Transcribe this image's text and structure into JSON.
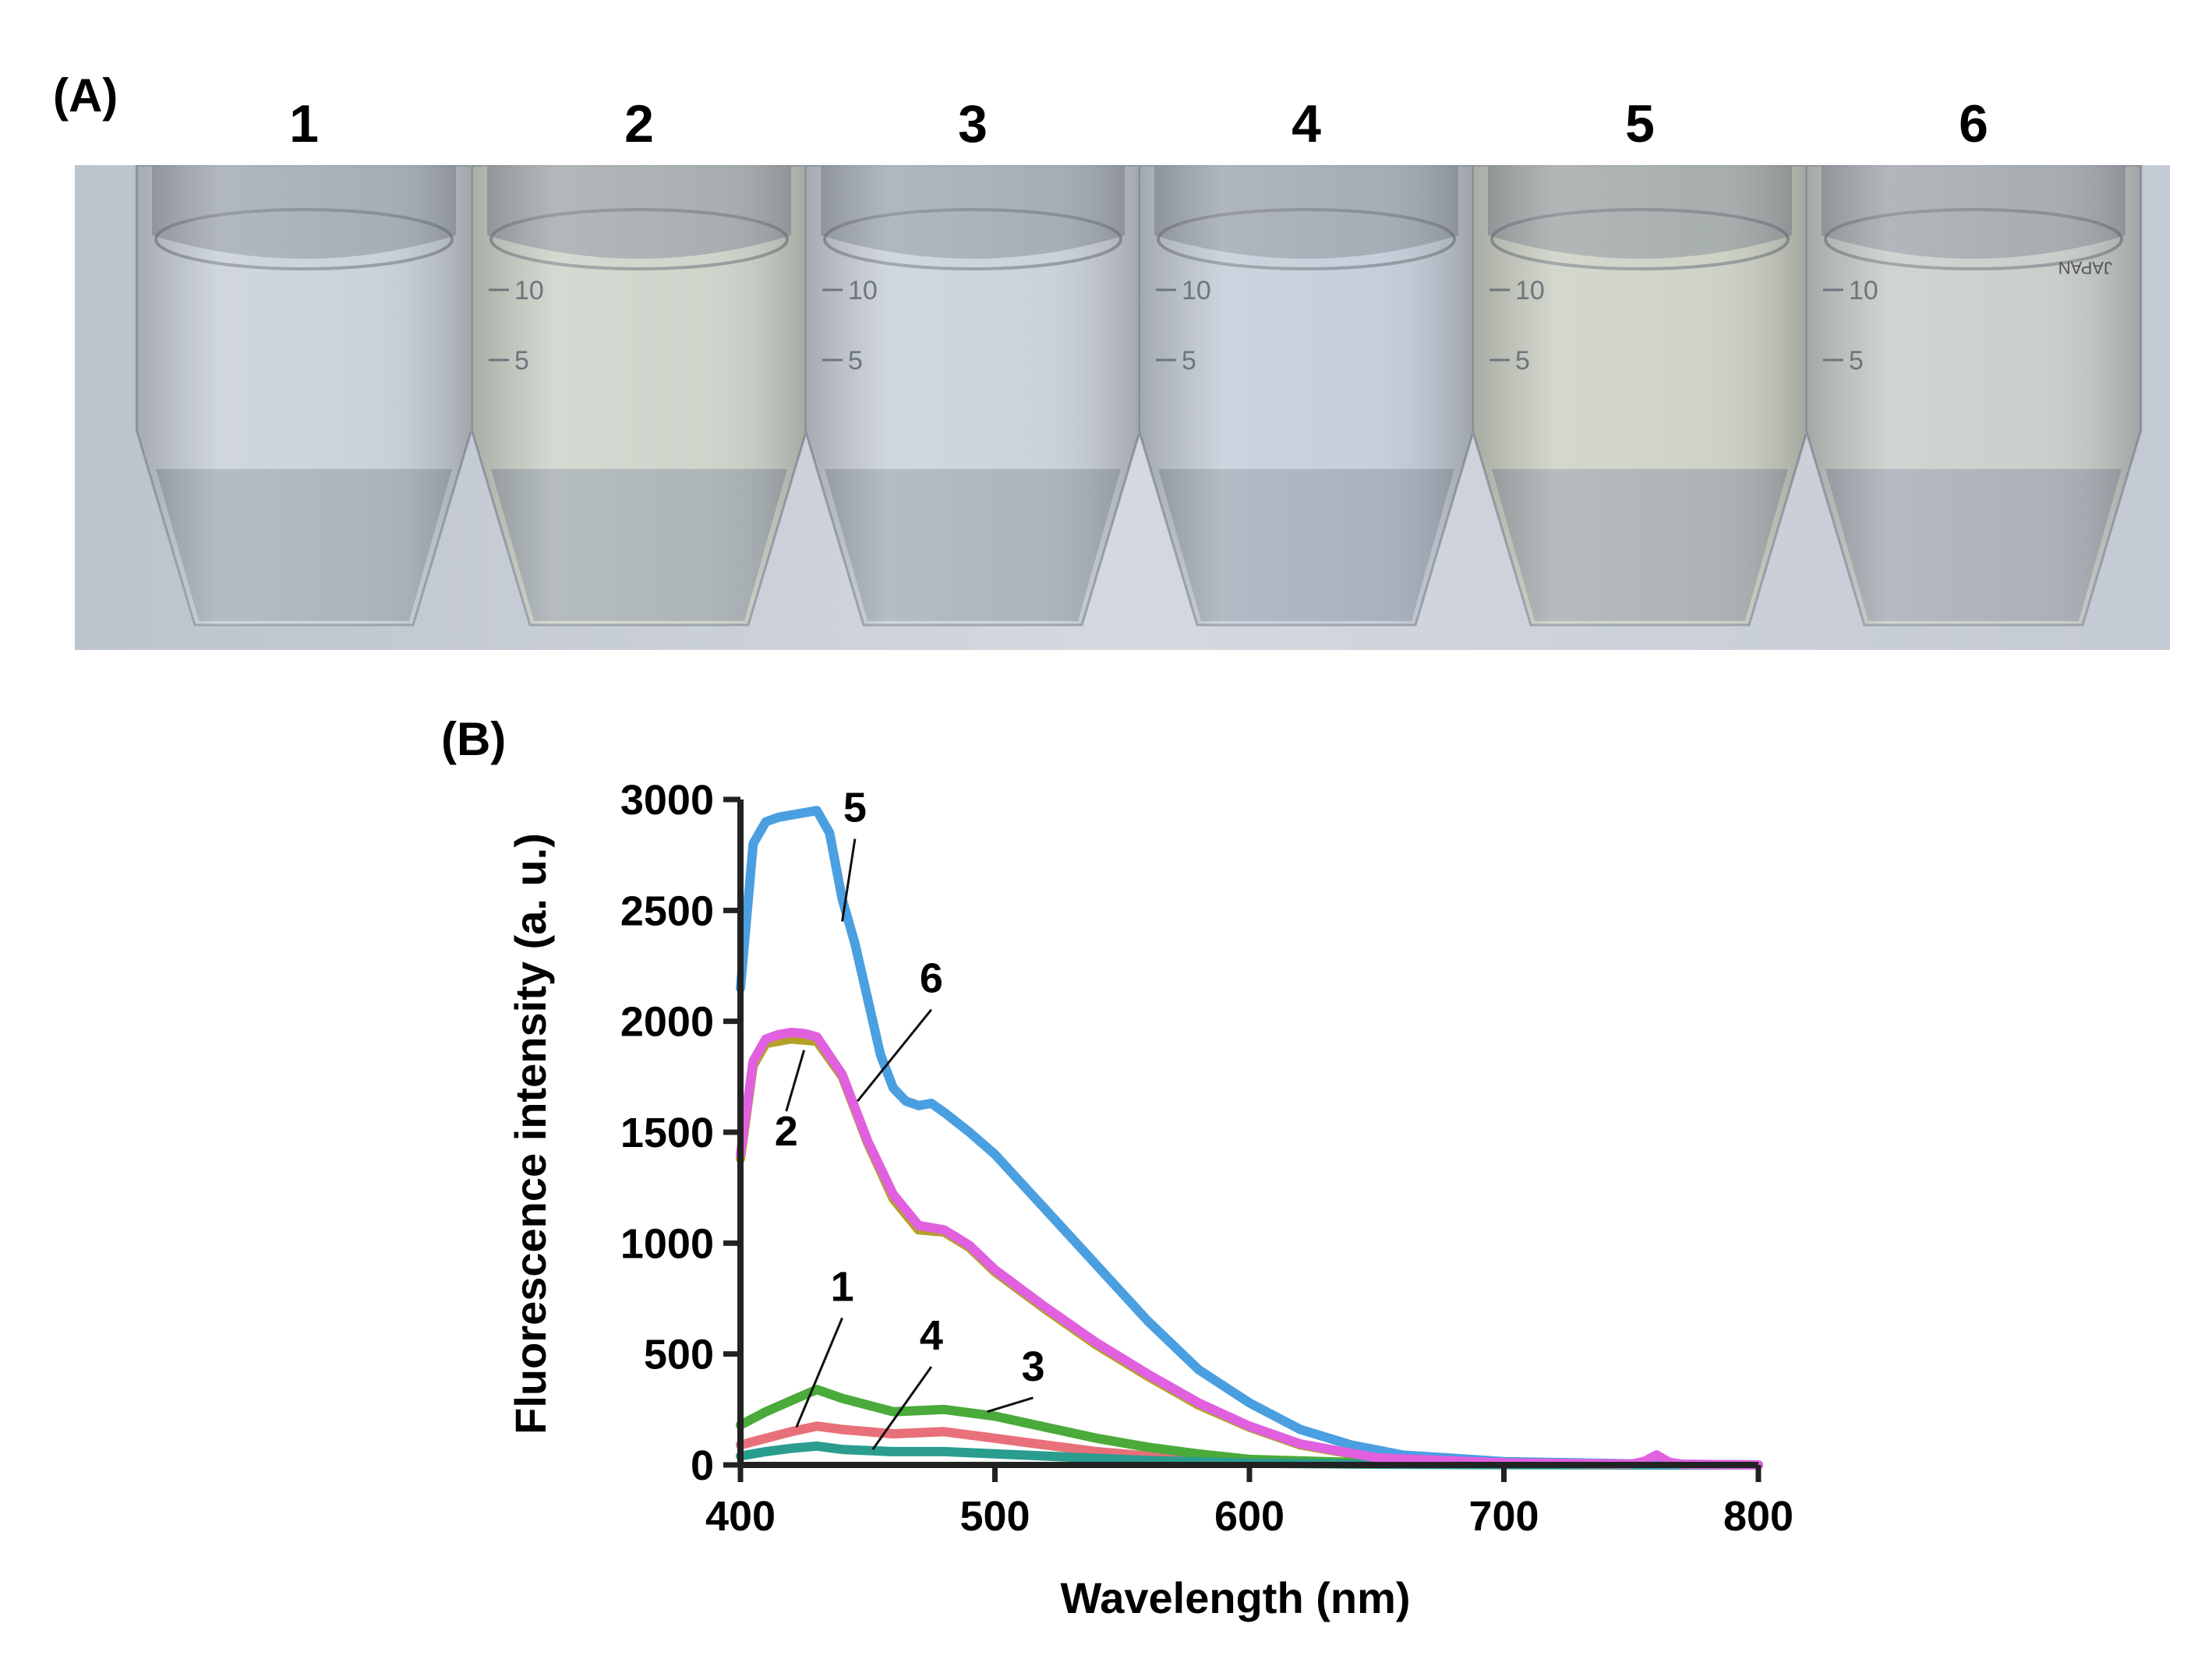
{
  "panel_a": {
    "label": "(A)",
    "tube_numbers": [
      "1",
      "2",
      "3",
      "4",
      "5",
      "6"
    ],
    "tube_tints": [
      "#c8d0d6",
      "#cdd3c9",
      "#c9d0d8",
      "#c5ccd8",
      "#ccd0c4",
      "#c8cdca"
    ],
    "graduation_marks": [
      [
        "",
        ""
      ],
      [
        "10",
        "5"
      ],
      [
        "10",
        "5"
      ],
      [
        "10",
        "5"
      ],
      [
        "10",
        "5"
      ],
      [
        "10",
        "5"
      ]
    ],
    "cap_text": "JAPAN"
  },
  "panel_b": {
    "label": "(B)"
  },
  "chart_data": {
    "type": "line",
    "title": "",
    "xlabel": "Wavelength (nm)",
    "ylabel": "Fluorescence intensity (a. u.)",
    "xlim": [
      400,
      800
    ],
    "ylim": [
      0,
      3000
    ],
    "xticks": [
      400,
      500,
      600,
      700,
      800
    ],
    "yticks": [
      0,
      500,
      1000,
      1500,
      2000,
      2500,
      3000
    ],
    "grid": false,
    "legend": "none",
    "series": [
      {
        "name": "1",
        "color": "#e8707a",
        "points": [
          [
            400,
            90
          ],
          [
            410,
            120
          ],
          [
            420,
            150
          ],
          [
            430,
            175
          ],
          [
            440,
            160
          ],
          [
            460,
            140
          ],
          [
            480,
            150
          ],
          [
            500,
            120
          ],
          [
            520,
            90
          ],
          [
            540,
            60
          ],
          [
            560,
            40
          ],
          [
            600,
            15
          ],
          [
            650,
            5
          ],
          [
            700,
            2
          ],
          [
            800,
            0
          ]
        ]
      },
      {
        "name": "2",
        "color": "#b5a02a",
        "points": [
          [
            400,
            1380
          ],
          [
            405,
            1800
          ],
          [
            410,
            1900
          ],
          [
            420,
            1920
          ],
          [
            430,
            1910
          ],
          [
            440,
            1750
          ],
          [
            450,
            1450
          ],
          [
            460,
            1200
          ],
          [
            470,
            1060
          ],
          [
            480,
            1050
          ],
          [
            490,
            980
          ],
          [
            500,
            870
          ],
          [
            520,
            700
          ],
          [
            540,
            540
          ],
          [
            560,
            400
          ],
          [
            580,
            270
          ],
          [
            600,
            170
          ],
          [
            620,
            90
          ],
          [
            650,
            30
          ],
          [
            700,
            8
          ],
          [
            750,
            3
          ],
          [
            800,
            0
          ]
        ]
      },
      {
        "name": "3",
        "color": "#4aaa3a",
        "points": [
          [
            400,
            180
          ],
          [
            410,
            240
          ],
          [
            420,
            290
          ],
          [
            430,
            340
          ],
          [
            440,
            300
          ],
          [
            460,
            240
          ],
          [
            480,
            250
          ],
          [
            500,
            220
          ],
          [
            520,
            170
          ],
          [
            540,
            120
          ],
          [
            560,
            80
          ],
          [
            580,
            50
          ],
          [
            600,
            25
          ],
          [
            650,
            8
          ],
          [
            700,
            2
          ],
          [
            800,
            0
          ]
        ]
      },
      {
        "name": "4",
        "color": "#2a9d8f",
        "points": [
          [
            400,
            40
          ],
          [
            410,
            60
          ],
          [
            420,
            75
          ],
          [
            430,
            85
          ],
          [
            440,
            70
          ],
          [
            460,
            60
          ],
          [
            480,
            60
          ],
          [
            500,
            50
          ],
          [
            520,
            40
          ],
          [
            540,
            30
          ],
          [
            560,
            20
          ],
          [
            600,
            8
          ],
          [
            650,
            3
          ],
          [
            700,
            1
          ],
          [
            800,
            0
          ]
        ]
      },
      {
        "name": "5",
        "color": "#4a9fe0",
        "points": [
          [
            400,
            2150
          ],
          [
            405,
            2800
          ],
          [
            410,
            2900
          ],
          [
            415,
            2920
          ],
          [
            420,
            2930
          ],
          [
            425,
            2940
          ],
          [
            430,
            2950
          ],
          [
            435,
            2850
          ],
          [
            440,
            2550
          ],
          [
            445,
            2350
          ],
          [
            450,
            2100
          ],
          [
            455,
            1850
          ],
          [
            460,
            1700
          ],
          [
            465,
            1640
          ],
          [
            470,
            1620
          ],
          [
            475,
            1630
          ],
          [
            480,
            1590
          ],
          [
            490,
            1500
          ],
          [
            500,
            1400
          ],
          [
            520,
            1150
          ],
          [
            540,
            900
          ],
          [
            560,
            650
          ],
          [
            580,
            430
          ],
          [
            600,
            280
          ],
          [
            620,
            160
          ],
          [
            640,
            90
          ],
          [
            660,
            45
          ],
          [
            700,
            15
          ],
          [
            750,
            5
          ],
          [
            800,
            0
          ]
        ]
      },
      {
        "name": "6",
        "color": "#e060e0",
        "points": [
          [
            400,
            1400
          ],
          [
            405,
            1820
          ],
          [
            410,
            1920
          ],
          [
            415,
            1940
          ],
          [
            420,
            1950
          ],
          [
            425,
            1945
          ],
          [
            430,
            1930
          ],
          [
            440,
            1760
          ],
          [
            450,
            1460
          ],
          [
            460,
            1220
          ],
          [
            470,
            1080
          ],
          [
            480,
            1060
          ],
          [
            490,
            990
          ],
          [
            500,
            880
          ],
          [
            520,
            710
          ],
          [
            540,
            550
          ],
          [
            560,
            410
          ],
          [
            580,
            280
          ],
          [
            600,
            175
          ],
          [
            620,
            95
          ],
          [
            650,
            32
          ],
          [
            700,
            9
          ],
          [
            750,
            4
          ],
          [
            755,
            15
          ],
          [
            760,
            45
          ],
          [
            765,
            12
          ],
          [
            770,
            3
          ],
          [
            800,
            0
          ]
        ]
      }
    ],
    "annotations": [
      {
        "text": "5",
        "at": [
          445,
          2900
        ],
        "target": [
          440,
          2450
        ]
      },
      {
        "text": "6",
        "at": [
          475,
          2130
        ],
        "target": [
          446,
          1640
        ]
      },
      {
        "text": "2",
        "at": [
          418,
          1440
        ],
        "target": [
          425,
          1870
        ]
      },
      {
        "text": "1",
        "at": [
          440,
          740
        ],
        "target": [
          422,
          170
        ]
      },
      {
        "text": "4",
        "at": [
          475,
          520
        ],
        "target": [
          452,
          70
        ]
      },
      {
        "text": "3",
        "at": [
          515,
          380
        ],
        "target": [
          497,
          240
        ]
      }
    ]
  }
}
